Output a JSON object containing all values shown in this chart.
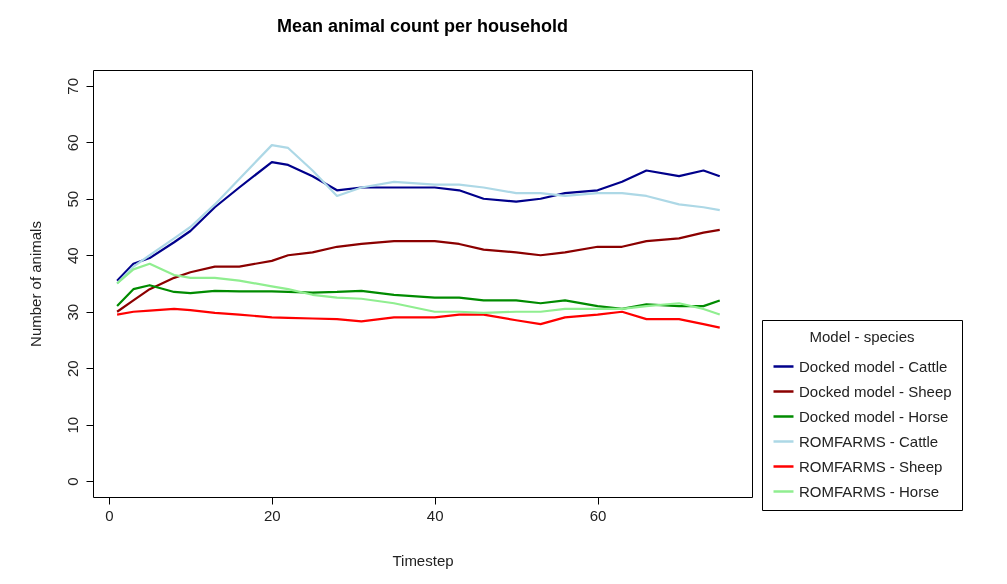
{
  "chart_data": {
    "type": "line",
    "title": "Mean animal count per household",
    "xlabel": "Timestep",
    "ylabel": "Number of animals",
    "legend_title": "Model - species",
    "legend": "right",
    "x": [
      1,
      3,
      5,
      8,
      10,
      13,
      16,
      20,
      22,
      25,
      28,
      31,
      35,
      40,
      43,
      46,
      50,
      53,
      56,
      60,
      63,
      66,
      70,
      73,
      75
    ],
    "series": [
      {
        "name": "Docked model - Cattle",
        "color": "#00008b",
        "values": [
          35.5,
          38.5,
          39.5,
          42.3,
          44.3,
          48.5,
          52,
          56.5,
          56,
          54,
          51.5,
          52,
          52,
          52,
          51.5,
          50,
          49.5,
          50,
          51,
          51.5,
          53,
          55,
          54,
          55,
          54
        ]
      },
      {
        "name": "Docked model - Sheep",
        "color": "#8b0000",
        "values": [
          30,
          32,
          34,
          36,
          37,
          38,
          38,
          39,
          40,
          40.5,
          41.5,
          42,
          42.5,
          42.5,
          42,
          41,
          40.5,
          40,
          40.5,
          41.5,
          41.5,
          42.5,
          43,
          44,
          44.5
        ]
      },
      {
        "name": "Docked model - Horse",
        "color": "#008b00",
        "values": [
          31,
          34,
          34.7,
          33.5,
          33.3,
          33.7,
          33.6,
          33.6,
          33.5,
          33.4,
          33.5,
          33.7,
          33,
          32.5,
          32.5,
          32,
          32,
          31.5,
          32,
          31,
          30.5,
          31.3,
          31,
          31,
          32
        ]
      },
      {
        "name": "ROMFARMS - Cattle",
        "color": "#add8e6",
        "values": [
          35,
          38,
          40,
          43,
          45,
          49,
          53.5,
          59.5,
          59,
          55,
          50.5,
          52,
          53,
          52.5,
          52.5,
          52,
          51,
          51,
          50.5,
          51,
          51,
          50.5,
          49,
          48.5,
          48
        ]
      },
      {
        "name": "ROMFARMS - Sheep",
        "color": "#ff0000",
        "values": [
          29.5,
          30,
          30.2,
          30.5,
          30.3,
          29.8,
          29.5,
          29,
          28.9,
          28.8,
          28.7,
          28.3,
          29,
          29,
          29.5,
          29.5,
          28.5,
          27.8,
          29,
          29.5,
          30,
          28.7,
          28.7,
          27.8,
          27.2
        ]
      },
      {
        "name": "ROMFARMS - Horse",
        "color": "#90ee90",
        "values": [
          35,
          37.5,
          38.5,
          36.5,
          36,
          36,
          35.5,
          34.5,
          34,
          33,
          32.5,
          32.3,
          31.5,
          30,
          30,
          29.8,
          30,
          30,
          30.5,
          30.5,
          30.5,
          31,
          31.5,
          30.5,
          29.5
        ]
      }
    ],
    "xlim": [
      -1.96,
      78.96
    ],
    "xticks": [
      0,
      20,
      40,
      60
    ],
    "ylim": [
      -2.8,
      72.8
    ],
    "yticks": [
      0,
      10,
      20,
      30,
      40,
      50,
      60,
      70
    ],
    "grid": false,
    "marker": "none",
    "line_style": "solid"
  }
}
